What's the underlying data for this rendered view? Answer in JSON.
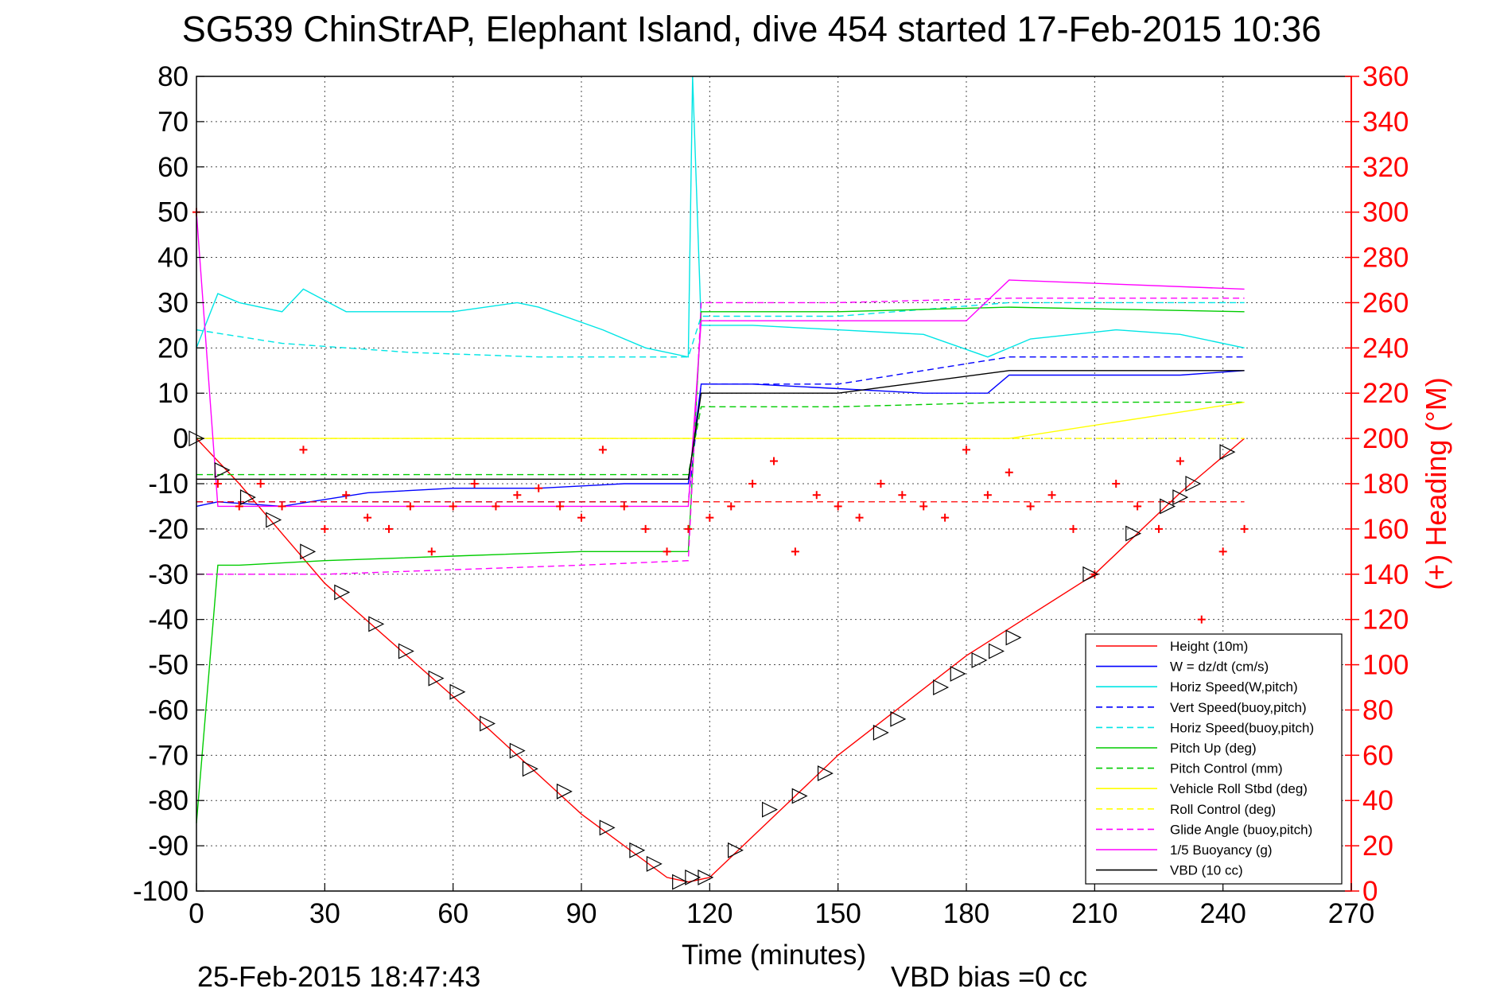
{
  "chart_data": {
    "type": "line",
    "title": "SG539 ChinStrAP, Elephant Island, dive 454 started 17-Feb-2015 10:36",
    "xlabel": "Time (minutes)",
    "ylabel": "",
    "y2label": "(+) Heading (°M)",
    "xlim": [
      0,
      270
    ],
    "ylim": [
      -100,
      80
    ],
    "y2lim": [
      0,
      360
    ],
    "xticks": [
      0,
      30,
      60,
      90,
      120,
      150,
      180,
      210,
      240,
      270
    ],
    "yticks": [
      -100,
      -90,
      -80,
      -70,
      -60,
      -50,
      -40,
      -30,
      -20,
      -10,
      0,
      10,
      20,
      30,
      40,
      50,
      60,
      70,
      80
    ],
    "y2ticks": [
      0,
      20,
      40,
      60,
      80,
      100,
      120,
      140,
      160,
      180,
      200,
      220,
      240,
      260,
      280,
      300,
      320,
      340,
      360
    ],
    "grid": true,
    "legend_position": "bottom-right",
    "footer_date": "25-Feb-2015 18:47:43",
    "footer_note": "VBD bias =0 cc",
    "colors": {
      "axis": "#000000",
      "heading_axis": "#ff0000",
      "red": "#ff0000",
      "blue": "#0000ff",
      "cyan": "#00e5e5",
      "green": "#00cc00",
      "yellow": "#ffff00",
      "magenta": "#ff00ff",
      "black": "#000000"
    },
    "series": [
      {
        "name": "Height (10m)",
        "color": "#ff0000",
        "dash": "solid",
        "x": [
          0,
          10,
          30,
          60,
          90,
          110,
          115,
          120,
          150,
          180,
          210,
          230,
          245
        ],
        "y": [
          0,
          -10,
          -32,
          -57,
          -83,
          -97,
          -98,
          -97,
          -70,
          -48,
          -30,
          -12,
          0
        ]
      },
      {
        "name": "W = dz/dt (cm/s)",
        "color": "#0000ff",
        "dash": "solid",
        "x": [
          0,
          5,
          20,
          40,
          60,
          80,
          100,
          115,
          118,
          130,
          150,
          170,
          185,
          190,
          210,
          230,
          245
        ],
        "y": [
          -15,
          -14,
          -15,
          -12,
          -11,
          -11,
          -10,
          -10,
          12,
          12,
          11,
          10,
          10,
          14,
          14,
          14,
          15
        ]
      },
      {
        "name": "Horiz Speed(W,pitch)",
        "color": "#00e5e5",
        "dash": "solid",
        "x": [
          0,
          5,
          10,
          20,
          25,
          35,
          45,
          60,
          75,
          80,
          95,
          105,
          115,
          116,
          118,
          130,
          150,
          170,
          185,
          195,
          215,
          230,
          245
        ],
        "y": [
          20,
          32,
          30,
          28,
          33,
          28,
          28,
          28,
          30,
          29,
          24,
          20,
          18,
          80,
          25,
          25,
          24,
          23,
          18,
          22,
          24,
          23,
          20
        ]
      },
      {
        "name": "Vert Speed(buoy,pitch)",
        "color": "#0000ff",
        "dash": "dash",
        "x": [
          0,
          50,
          115,
          118,
          150,
          190,
          245
        ],
        "y": [
          -14,
          -14,
          -14,
          12,
          12,
          18,
          18
        ]
      },
      {
        "name": "Horiz Speed(buoy,pitch)",
        "color": "#00e5e5",
        "dash": "dash",
        "x": [
          0,
          20,
          50,
          80,
          115,
          118,
          150,
          190,
          245
        ],
        "y": [
          24,
          21,
          19,
          18,
          18,
          27,
          27,
          30,
          30
        ]
      },
      {
        "name": "Pitch Up (deg)",
        "color": "#00cc00",
        "dash": "solid",
        "x": [
          0,
          5,
          10,
          30,
          60,
          90,
          115,
          118,
          150,
          190,
          245
        ],
        "y": [
          -85,
          -28,
          -28,
          -27,
          -26,
          -25,
          -25,
          28,
          28,
          29,
          28
        ]
      },
      {
        "name": "Pitch Control (mm)",
        "color": "#00cc00",
        "dash": "dash",
        "x": [
          0,
          115,
          118,
          150,
          190,
          245
        ],
        "y": [
          -8,
          -8,
          7,
          7,
          8,
          8
        ]
      },
      {
        "name": "Vehicle Roll Stbd (deg)",
        "color": "#ffff00",
        "dash": "solid",
        "x": [
          0,
          20,
          60,
          100,
          115,
          118,
          150,
          190,
          245
        ],
        "y": [
          0,
          0,
          0,
          0,
          0,
          0,
          0,
          0,
          8
        ]
      },
      {
        "name": "Roll Control (deg)",
        "color": "#ffff00",
        "dash": "dash",
        "x": [
          0,
          115,
          118,
          245
        ],
        "y": [
          0,
          0,
          0,
          0
        ]
      },
      {
        "name": "Glide Angle (buoy,pitch)",
        "color": "#ff00ff",
        "dash": "dash",
        "x": [
          0,
          30,
          60,
          90,
          115,
          118,
          150,
          190,
          245
        ],
        "y": [
          -30,
          -30,
          -29,
          -28,
          -27,
          30,
          30,
          31,
          31
        ]
      },
      {
        "name": "1/5 Buoyancy (g)",
        "color": "#ff00ff",
        "dash": "solid",
        "x": [
          0,
          5,
          115,
          118,
          150,
          180,
          190,
          245
        ],
        "y": [
          50,
          -15,
          -15,
          26,
          26,
          26,
          35,
          33
        ]
      },
      {
        "name": "VBD (10 cc)",
        "color": "#000000",
        "dash": "solid",
        "x": [
          0,
          115,
          118,
          150,
          190,
          245
        ],
        "y": [
          -9,
          -9,
          10,
          10,
          15,
          15
        ]
      }
    ],
    "heading": {
      "name": "Heading",
      "axis": "right",
      "color": "#ff0000",
      "marker": "+",
      "x": [
        0,
        5,
        10,
        15,
        20,
        25,
        30,
        35,
        40,
        45,
        50,
        55,
        60,
        65,
        70,
        75,
        80,
        85,
        90,
        95,
        100,
        105,
        110,
        115,
        120,
        125,
        130,
        135,
        140,
        145,
        150,
        155,
        160,
        165,
        170,
        175,
        180,
        185,
        190,
        195,
        200,
        205,
        210,
        215,
        220,
        225,
        230,
        235,
        240,
        245
      ],
      "y": [
        300,
        180,
        170,
        180,
        170,
        195,
        160,
        175,
        165,
        160,
        170,
        150,
        170,
        180,
        170,
        175,
        178,
        170,
        165,
        195,
        170,
        160,
        150,
        160,
        165,
        170,
        180,
        190,
        150,
        175,
        170,
        165,
        180,
        175,
        170,
        165,
        195,
        175,
        185,
        170,
        175,
        160,
        140,
        180,
        170,
        160,
        190,
        120,
        150,
        160
      ]
    },
    "heading_ref": {
      "y": 172
    },
    "markers": {
      "name": "Height markers",
      "x": [
        0,
        6,
        12,
        18,
        26,
        34,
        42,
        49,
        56,
        61,
        68,
        75,
        78,
        86,
        96,
        103,
        107,
        113,
        116,
        119,
        126,
        134,
        141,
        147,
        160,
        164,
        174,
        178,
        183,
        187,
        191,
        209,
        219,
        227,
        230,
        233,
        241
      ],
      "y": [
        0,
        -7,
        -13,
        -18,
        -25,
        -34,
        -41,
        -47,
        -53,
        -56,
        -63,
        -69,
        -73,
        -78,
        -86,
        -91,
        -94,
        -98,
        -97,
        -97,
        -91,
        -82,
        -79,
        -74,
        -65,
        -62,
        -55,
        -52,
        -49,
        -47,
        -44,
        -30,
        -21,
        -15,
        -13,
        -10,
        -3
      ]
    }
  }
}
